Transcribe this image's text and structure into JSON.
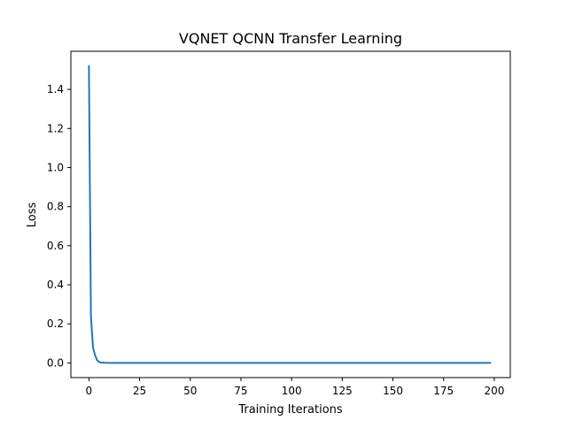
{
  "chart_data": {
    "type": "line",
    "title": "VQNET QCNN Transfer Learning",
    "xlabel": "Training Iterations",
    "ylabel": "Loss",
    "xlim": [
      -8.9,
      207.9
    ],
    "ylim": [
      -0.075,
      1.595
    ],
    "x_ticks": [
      0,
      25,
      50,
      75,
      100,
      125,
      150,
      175,
      200
    ],
    "y_ticks": [
      0.0,
      0.2,
      0.4,
      0.6,
      0.8,
      1.0,
      1.2,
      1.4
    ],
    "y_tick_labels": [
      "0.0",
      "0.2",
      "0.4",
      "0.6",
      "0.8",
      "1.0",
      "1.2",
      "1.4"
    ],
    "grid": false,
    "series": [
      {
        "color": "#1f77b4",
        "x": [
          0,
          1,
          2,
          3,
          4,
          5,
          6,
          8,
          10,
          15,
          20,
          30,
          50,
          100,
          150,
          198
        ],
        "values": [
          1.52,
          0.24,
          0.08,
          0.04,
          0.015,
          0.005,
          0.002,
          0.001,
          0.0005,
          0.0003,
          0.0002,
          0.0001,
          0.0001,
          0.0001,
          0.0001,
          0.0001
        ]
      }
    ]
  }
}
